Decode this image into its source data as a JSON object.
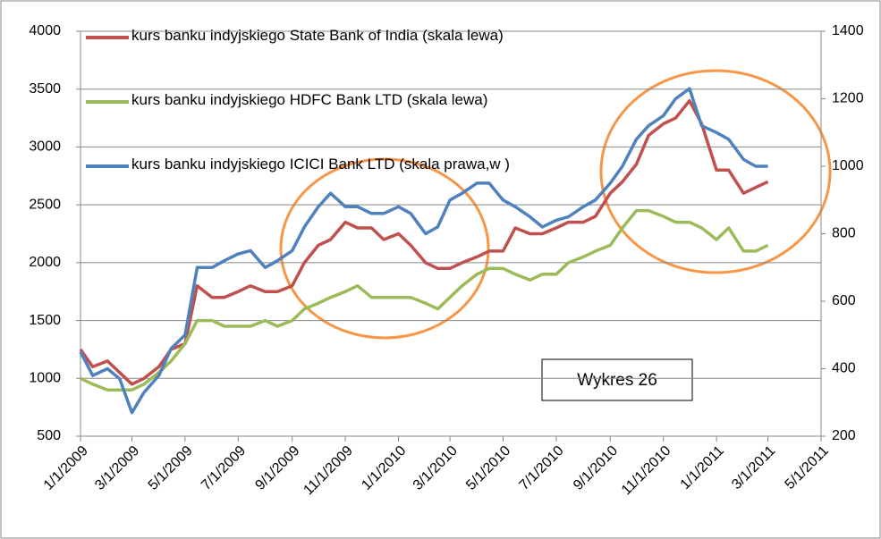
{
  "chart_data": {
    "type": "line",
    "annotation": "Wykres 26",
    "x": [
      "1/1/2009",
      "1/15/2009",
      "2/1/2009",
      "2/15/2009",
      "3/1/2009",
      "3/15/2009",
      "4/1/2009",
      "4/15/2009",
      "5/1/2009",
      "5/15/2009",
      "6/1/2009",
      "6/15/2009",
      "7/1/2009",
      "7/15/2009",
      "8/1/2009",
      "8/15/2009",
      "9/1/2009",
      "9/15/2009",
      "10/1/2009",
      "10/15/2009",
      "11/1/2009",
      "11/15/2009",
      "12/1/2009",
      "12/15/2009",
      "1/1/2010",
      "1/15/2010",
      "2/1/2010",
      "2/15/2010",
      "3/1/2010",
      "3/15/2010",
      "4/1/2010",
      "4/15/2010",
      "5/1/2010",
      "5/15/2010",
      "6/1/2010",
      "6/15/2010",
      "7/1/2010",
      "7/15/2010",
      "8/1/2010",
      "8/15/2010",
      "9/1/2010",
      "9/15/2010",
      "10/1/2010",
      "10/15/2010",
      "11/1/2010",
      "11/15/2010",
      "12/1/2010",
      "12/15/2010",
      "1/1/2011",
      "1/15/2011",
      "2/1/2011",
      "2/15/2011",
      "3/1/2011"
    ],
    "series": [
      {
        "name": "kurs banku indyjskiego State Bank of India (skala lewa)",
        "color": "#c0504d",
        "axis": "y",
        "values": [
          1250,
          1100,
          1150,
          1050,
          950,
          1000,
          1100,
          1250,
          1300,
          1800,
          1700,
          1700,
          1750,
          1800,
          1750,
          1750,
          1800,
          2000,
          2150,
          2200,
          2350,
          2300,
          2300,
          2200,
          2250,
          2150,
          2000,
          1950,
          1950,
          2000,
          2050,
          2100,
          2100,
          2300,
          2250,
          2250,
          2300,
          2350,
          2350,
          2400,
          2600,
          2700,
          2850,
          3100,
          3200,
          3250,
          3400,
          3200,
          2800,
          2800,
          2600,
          2650,
          2700
        ]
      },
      {
        "name": "kurs banku indyjskiego HDFC Bank LTD (skala lewa)",
        "color": "#9bbb59",
        "axis": "y",
        "values": [
          1000,
          950,
          900,
          900,
          900,
          950,
          1050,
          1150,
          1300,
          1500,
          1500,
          1450,
          1450,
          1450,
          1500,
          1450,
          1500,
          1600,
          1650,
          1700,
          1750,
          1800,
          1700,
          1700,
          1700,
          1700,
          1650,
          1600,
          1700,
          1800,
          1900,
          1950,
          1950,
          1900,
          1850,
          1900,
          1900,
          2000,
          2050,
          2100,
          2150,
          2300,
          2450,
          2450,
          2400,
          2350,
          2350,
          2300,
          2200,
          2300,
          2100,
          2100,
          2150
        ]
      },
      {
        "name": "kurs banku indyjskiego ICICI Bank LTD (skala prawa,w )",
        "color": "#4f81bd",
        "axis": "y2",
        "values": [
          450,
          380,
          400,
          370,
          270,
          330,
          380,
          460,
          500,
          700,
          700,
          720,
          740,
          750,
          700,
          720,
          750,
          820,
          880,
          920,
          880,
          880,
          860,
          860,
          880,
          860,
          800,
          820,
          900,
          920,
          950,
          950,
          900,
          880,
          850,
          820,
          840,
          850,
          880,
          900,
          950,
          1000,
          1080,
          1120,
          1150,
          1200,
          1230,
          1120,
          1100,
          1080,
          1020,
          1000,
          1000
        ]
      }
    ],
    "xlim": [
      "1/1/2009",
      "5/1/2011"
    ],
    "xticks": [
      "1/1/2009",
      "3/1/2009",
      "5/1/2009",
      "7/1/2009",
      "9/1/2009",
      "11/1/2009",
      "1/1/2010",
      "3/1/2010",
      "5/1/2010",
      "7/1/2010",
      "9/1/2010",
      "11/1/2010",
      "1/1/2011",
      "3/1/2011",
      "5/1/2011"
    ],
    "ylim": [
      500,
      4000
    ],
    "yticks": [
      500,
      1000,
      1500,
      2000,
      2500,
      3000,
      3500,
      4000
    ],
    "y2lim": [
      200,
      1400
    ],
    "y2ticks": [
      200,
      400,
      600,
      800,
      1000,
      1200,
      1400
    ],
    "grid": true
  }
}
